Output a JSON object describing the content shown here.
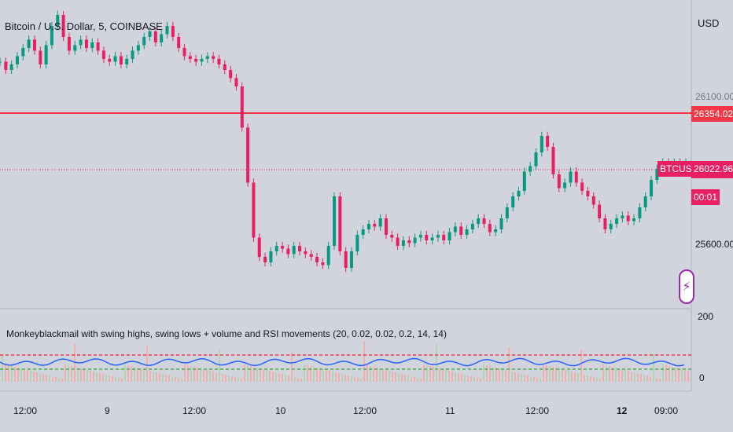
{
  "header": {
    "title": "Bitcoin / U.S. Dollar, 5, COINBASE",
    "currency": "USD"
  },
  "price_axis": {
    "labels": [
      "26100.00",
      "25600.00"
    ],
    "lines": {
      "resistance": {
        "value": "26354.02",
        "color": "#f23645"
      },
      "last": {
        "symbol": "BTCUSD",
        "value": "26022.96",
        "countdown": "00:01",
        "color": "#e91e63"
      }
    }
  },
  "indicator": {
    "title": "Monkeyblackmail with swing highs, swing lows + volume and RSI movements (20, 0.02, 0.02, 0.2, 14, 14)",
    "axis_labels": [
      "200",
      "0"
    ],
    "overbought_color": "#f23645",
    "oversold_color": "#4caf50",
    "rsi_color": "#2962ff"
  },
  "time_axis": {
    "labels": [
      {
        "text": "12:00",
        "bold": false
      },
      {
        "text": "9",
        "bold": false
      },
      {
        "text": "12:00",
        "bold": false
      },
      {
        "text": "10",
        "bold": false
      },
      {
        "text": "12:00",
        "bold": false
      },
      {
        "text": "11",
        "bold": false
      },
      {
        "text": "12:00",
        "bold": false
      },
      {
        "text": "12",
        "bold": true
      },
      {
        "text": "09:00",
        "bold": false
      }
    ]
  },
  "chart_data": {
    "type": "line",
    "title": "Bitcoin / U.S. Dollar, 5, COINBASE",
    "xlabel": "",
    "ylabel": "",
    "ylim": [
      25500,
      26500
    ],
    "x": [
      0,
      1,
      2,
      3,
      4,
      5,
      6,
      7,
      8,
      9,
      10,
      11,
      12,
      13,
      14,
      15,
      16,
      17,
      18,
      19,
      20,
      21,
      22,
      23,
      24,
      25,
      26,
      27,
      28,
      29,
      30,
      31,
      32,
      33,
      34,
      35,
      36,
      37,
      38,
      39,
      40,
      41,
      42,
      43,
      44,
      45,
      46,
      47,
      48,
      49,
      50,
      51,
      52,
      53,
      54,
      55,
      56,
      57,
      58,
      59,
      60,
      61,
      62,
      63,
      64,
      65,
      66,
      67,
      68,
      69,
      70,
      71,
      72,
      73,
      74,
      75,
      76,
      77,
      78,
      79,
      80,
      81,
      82,
      83,
      84,
      85,
      86,
      87,
      88,
      89,
      90,
      91,
      92,
      93,
      94,
      95,
      96,
      97,
      98,
      99,
      100,
      101,
      102,
      103,
      104,
      105,
      106,
      107,
      108,
      109,
      110,
      111,
      112,
      113,
      114,
      115,
      116,
      117,
      118,
      119
    ],
    "series": [
      {
        "values": [
          26390,
          26360,
          26380,
          26410,
          26440,
          26470,
          26430,
          26380,
          26450,
          26520,
          26560,
          26480,
          26430,
          26450,
          26470,
          26440,
          26460,
          26430,
          26400,
          26390,
          26410,
          26380,
          26400,
          26430,
          26450,
          26480,
          26500,
          26460,
          26490,
          26520,
          26480,
          26440,
          26410,
          26400,
          26390,
          26400,
          26410,
          26400,
          26380,
          26360,
          26330,
          26300,
          26150,
          25950,
          25750,
          25680,
          25660,
          25700,
          25720,
          25710,
          25690,
          25720,
          25700,
          25690,
          25680,
          25660,
          25650,
          25720,
          25900,
          25700,
          25640,
          25700,
          25760,
          25780,
          25800,
          25790,
          25820,
          25760,
          25750,
          25720,
          25740,
          25730,
          25750,
          25760,
          25740,
          25750,
          25760,
          25740,
          25770,
          25790,
          25760,
          25780,
          25800,
          25820,
          25800,
          25770,
          25780,
          25820,
          25860,
          25900,
          25920,
          25990,
          26010,
          26060,
          26120,
          26080,
          25980,
          25930,
          25950,
          25990,
          25950,
          25920,
          25900,
          25870,
          25820,
          25780,
          25800,
          25820,
          25830,
          25810,
          25820,
          25860,
          25900,
          25960,
          26000,
          26023,
          26010,
          26023,
          26020,
          26023
        ],
        "color": "#e91e63"
      }
    ]
  }
}
